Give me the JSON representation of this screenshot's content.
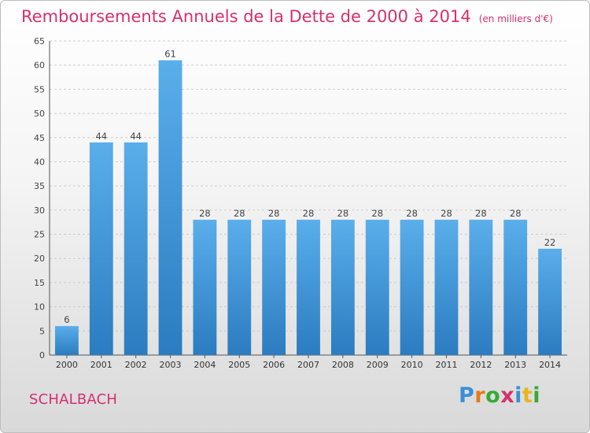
{
  "chart_data": {
    "type": "bar",
    "title": "Remboursements Annuels de la Dette de 2000 à 2014",
    "subtitle": "(en milliers d'€)",
    "xlabel": "",
    "ylabel": "",
    "categories": [
      "2000",
      "2001",
      "2002",
      "2003",
      "2004",
      "2005",
      "2006",
      "2007",
      "2008",
      "2009",
      "2010",
      "2011",
      "2012",
      "2013",
      "2014"
    ],
    "values": [
      6,
      44,
      44,
      61,
      28,
      28,
      28,
      28,
      28,
      28,
      28,
      28,
      28,
      28,
      22
    ],
    "ylim": [
      0,
      65
    ],
    "yticks": [
      0,
      5,
      10,
      15,
      20,
      25,
      30,
      35,
      40,
      45,
      50,
      55,
      60,
      65
    ],
    "grid": true,
    "bar_color": "#4a9fe0"
  },
  "footer": {
    "commune": "SCHALBACH",
    "brand_letters": [
      "P",
      "r",
      "o",
      "x",
      "i",
      "t",
      "i"
    ],
    "brand_colors": [
      "#3a8fd6",
      "#e87a1c",
      "#39a935",
      "#d5306b",
      "#3a8fd6",
      "#e8b61c",
      "#39a935"
    ]
  },
  "colors": {
    "title": "#d5306b",
    "grid": "#cccccc",
    "axis": "#555555"
  }
}
